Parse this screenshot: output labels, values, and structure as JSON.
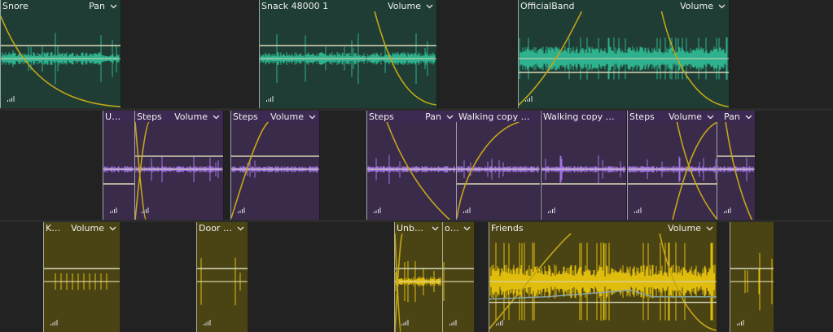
{
  "colors": {
    "teal_wave": "#2fb894",
    "purple_wave": "#a578e8",
    "yellow_wave": "#e8c40c",
    "automation_curve": "#c4a617",
    "envelope_line": "#d8d8b8",
    "pan_line": "#8aa6a6"
  },
  "icons": {
    "dropdown": "chevron-down-icon",
    "level": "level-meter-icon"
  },
  "tracks": [
    {
      "name": "track-1",
      "clips": [
        {
          "name": "Snore",
          "param": "Pan"
        },
        {
          "name": "Snack 48000 1",
          "param": "Volume"
        },
        {
          "name": "OfficialBand",
          "param": "Volume"
        }
      ]
    },
    {
      "name": "track-2",
      "clips": [
        {
          "name": "Unbox…",
          "param": ""
        },
        {
          "name": "Steps",
          "param": "Volume"
        },
        {
          "name": "Steps",
          "param": "Volume"
        },
        {
          "name": "Steps",
          "param": "Pan"
        },
        {
          "name": "Walking copy Vo…",
          "param": ""
        },
        {
          "name": "Walking copy Vo…",
          "param": ""
        },
        {
          "name": "Steps",
          "param": "Volume"
        },
        {
          "name": "",
          "param": "Pan"
        }
      ]
    },
    {
      "name": "track-3",
      "clips": [
        {
          "name": "Knife",
          "param": "Volume"
        },
        {
          "name": "Door V…",
          "param": ""
        },
        {
          "name": "Unbox…",
          "param": ""
        },
        {
          "name": "oor",
          "param": ""
        },
        {
          "name": "Friends",
          "param": "Volume"
        },
        {
          "name": "",
          "param": ""
        }
      ]
    }
  ]
}
